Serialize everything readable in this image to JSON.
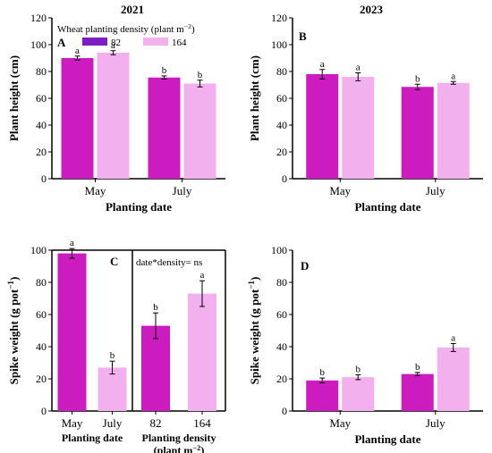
{
  "figure": {
    "year_left": "2021",
    "year_right": "2023",
    "legend_title": "Wheat planting density (plant m",
    "legend_title_sup": "−2",
    "legend_title_end": ")",
    "legend_items": [
      {
        "label": "82",
        "color": "#7b1fc4"
      },
      {
        "label": "164",
        "color": "#f2b0ee"
      }
    ]
  },
  "chart_data": [
    {
      "panel": "A",
      "type": "bar",
      "year": "2021",
      "categories": [
        "May",
        "July"
      ],
      "series": [
        {
          "name": "82",
          "color": "#cc1bbf",
          "values": [
            90,
            75.5
          ],
          "errors": [
            1.5,
            1.2
          ],
          "letters": [
            "a",
            "b"
          ]
        },
        {
          "name": "164",
          "color": "#f2b0ee",
          "values": [
            94,
            71
          ],
          "errors": [
            1.5,
            2.5
          ],
          "letters": [
            "a",
            "b"
          ]
        }
      ],
      "xlabel": "Planting date",
      "ylabel": "Plant height (cm)",
      "ylim": [
        0,
        120
      ],
      "yticks": [
        0,
        20,
        40,
        60,
        80,
        100,
        120
      ]
    },
    {
      "panel": "B",
      "type": "bar",
      "year": "2023",
      "categories": [
        "May",
        "July"
      ],
      "series": [
        {
          "name": "82",
          "color": "#cc1bbf",
          "values": [
            78,
            68.5
          ],
          "errors": [
            3.5,
            2
          ],
          "letters": [
            "a",
            "b"
          ]
        },
        {
          "name": "164",
          "color": "#f2b0ee",
          "values": [
            76,
            71.5
          ],
          "errors": [
            3,
            1
          ],
          "letters": [
            "a",
            "a"
          ]
        }
      ],
      "xlabel": "Planting date",
      "ylabel": "Plant height (cm)",
      "ylim": [
        0,
        120
      ],
      "yticks": [
        0,
        20,
        40,
        60,
        80,
        100,
        120
      ]
    },
    {
      "panel": "C",
      "type": "bar",
      "year": "2021",
      "annotation": "date*density= ns",
      "ylabel": "Spike weight (g pot",
      "ylim": [
        0,
        100
      ],
      "yticks": [
        0,
        20,
        40,
        60,
        80,
        100
      ],
      "groups": [
        {
          "xlabel": "Planting date",
          "categories": [
            "May",
            "July"
          ],
          "values": [
            98,
            27
          ],
          "errors": [
            3,
            4
          ],
          "letters": [
            "a",
            "b"
          ],
          "colors": [
            "#cc1bbf",
            "#f2b0ee"
          ]
        },
        {
          "xlabel": "Planting density",
          "xlabel2": "(plant m",
          "categories": [
            "82",
            "164"
          ],
          "values": [
            53,
            73
          ],
          "errors": [
            8,
            8
          ],
          "letters": [
            "b",
            "a"
          ],
          "colors": [
            "#cc1bbf",
            "#f2b0ee"
          ]
        }
      ]
    },
    {
      "panel": "D",
      "type": "bar",
      "year": "2023",
      "categories": [
        "May",
        "July"
      ],
      "series": [
        {
          "name": "82",
          "color": "#cc1bbf",
          "values": [
            19,
            23
          ],
          "errors": [
            1.5,
            1
          ],
          "letters": [
            "b",
            "b"
          ]
        },
        {
          "name": "164",
          "color": "#f2b0ee",
          "values": [
            21,
            39.5
          ],
          "errors": [
            1.5,
            2.5
          ],
          "letters": [
            "b",
            "a"
          ]
        }
      ],
      "xlabel": "Planting date",
      "ylabel": "Spike weight (g pot",
      "ylim": [
        0,
        100
      ],
      "yticks": [
        0,
        20,
        40,
        60,
        80,
        100
      ]
    }
  ]
}
